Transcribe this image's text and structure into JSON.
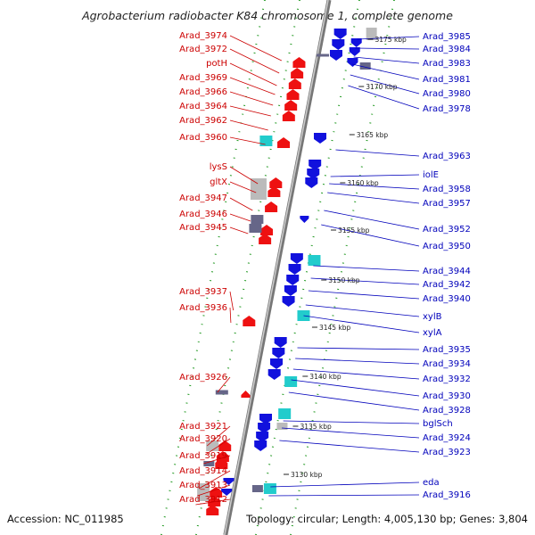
{
  "title": "Agrobacterium radiobacter K84 chromosome 1, complete genome",
  "footer": {
    "accession": "Accession: NC_011985",
    "topology": "Topology: circular; Length: 4,005,130 bp; Genes: 3,804"
  },
  "colors": {
    "forward": "#ee1111",
    "reverse": "#1111dd",
    "rna": "#22cccc",
    "pseudo": "#bbbbbb",
    "other": "#666688",
    "backbone": "#999999",
    "dots": "#229922"
  },
  "kbp_ticks": [
    "3175 kbp",
    "3170 kbp",
    "3165 kbp",
    "3160 kbp",
    "3155 kbp",
    "3150 kbp",
    "3145 kbp",
    "3140 kbp",
    "3135 kbp",
    "3130 kbp"
  ],
  "left_labels": [
    "Arad_3974",
    "Arad_3972",
    "potH",
    "Arad_3969",
    "Arad_3966",
    "Arad_3964",
    "Arad_3962",
    "Arad_3960",
    "lysS",
    "gltX",
    "Arad_3947",
    "Arad_3946",
    "Arad_3945",
    "Arad_3937",
    "Arad_3936",
    "Arad_3926",
    "Arad_3921",
    "Arad_3920",
    "Arad_3919",
    "Arad_3914",
    "Arad_3913",
    "Arad_3912"
  ],
  "right_labels": [
    "Arad_3985",
    "Arad_3984",
    "Arad_3983",
    "Arad_3981",
    "Arad_3980",
    "Arad_3978",
    "Arad_3963",
    "iolE",
    "Arad_3958",
    "Arad_3957",
    "Arad_3952",
    "Arad_3950",
    "Arad_3944",
    "Arad_3942",
    "Arad_3940",
    "xylB",
    "xylA",
    "Arad_3935",
    "Arad_3934",
    "Arad_3932",
    "Arad_3930",
    "Arad_3928",
    "bglSch",
    "Arad_3924",
    "Arad_3923",
    "eda",
    "Arad_3916"
  ]
}
